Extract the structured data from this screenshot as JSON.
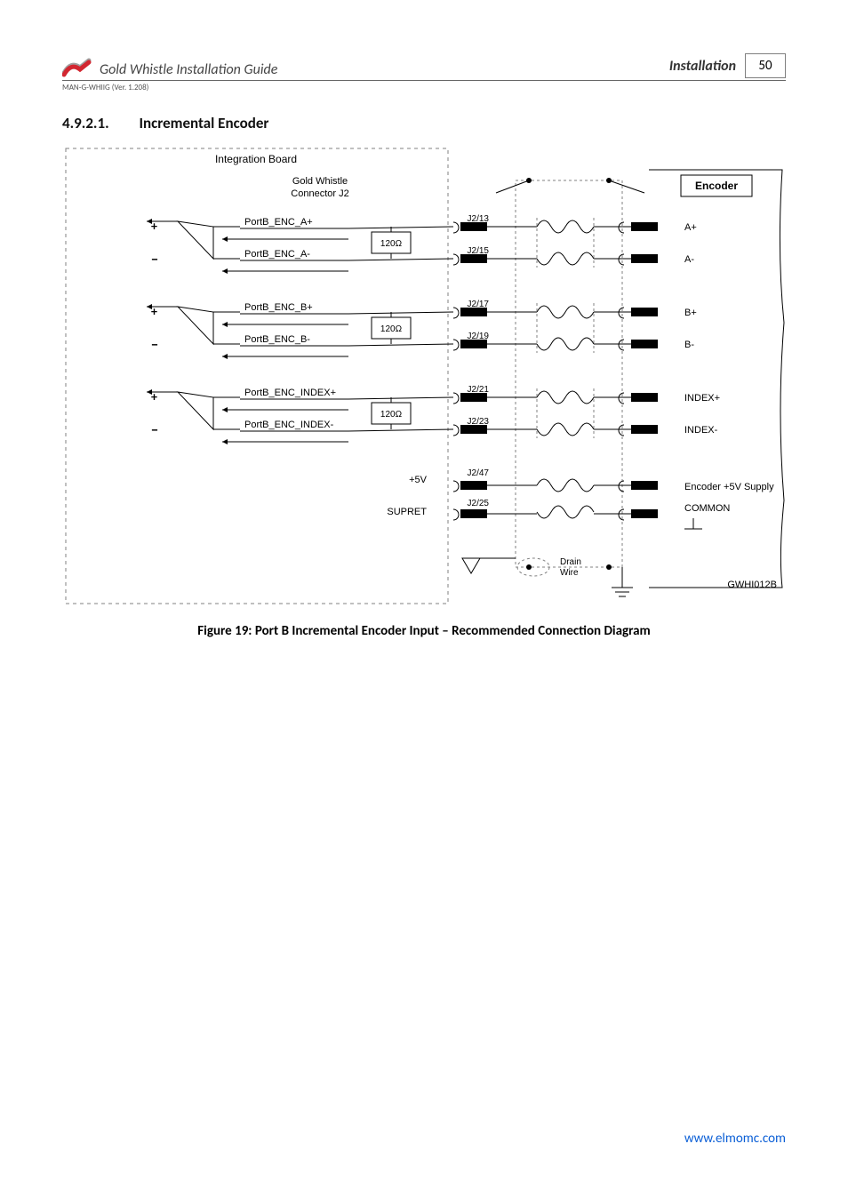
{
  "header": {
    "doc_title": "Gold Whistle Installation Guide",
    "section_label": "Installation",
    "page_number": "50",
    "version_line": "MAN-G-WHIIG (Ver. 1.208)"
  },
  "section": {
    "number": "4.9.2.1.",
    "title": "Incremental Encoder"
  },
  "diagram": {
    "type": "schematic",
    "integration_label": "Integration Board",
    "connector_label_1": "Gold Whistle",
    "connector_label_2": "Connector J2",
    "encoder_label": "Encoder",
    "drain_label_1": "Drain",
    "drain_label_2": "Wire",
    "ref_code": "GWHI012B",
    "resistor_value": "120Ω",
    "power_plus": "+5V",
    "power_ret": "SUPRET",
    "channels": [
      {
        "plus_name": "PortB_ENC_A+",
        "minus_name": "PortB_ENC_A-",
        "pin_plus": "J2/13",
        "pin_minus": "J2/15",
        "enc_plus": "A+",
        "enc_minus": "A-"
      },
      {
        "plus_name": "PortB_ENC_B+",
        "minus_name": "PortB_ENC_B-",
        "pin_plus": "J2/17",
        "pin_minus": "J2/19",
        "enc_plus": "B+",
        "enc_minus": "B-"
      },
      {
        "plus_name": "PortB_ENC_INDEX+",
        "minus_name": "PortB_ENC_INDEX-",
        "pin_plus": "J2/21",
        "pin_minus": "J2/23",
        "enc_plus": "INDEX+",
        "enc_minus": "INDEX-"
      }
    ],
    "power_pins": {
      "v5": "J2/47",
      "common": "J2/25",
      "enc_supply": "Encoder +5V Supply",
      "enc_common": "COMMON"
    },
    "colors": {
      "border": "#000000",
      "dash": "#808080",
      "bg": "#ffffff",
      "text": "#000000",
      "logo_red": "#d22630",
      "logo_gray": "#a0a0a0"
    },
    "fontsizes": {
      "label": 11,
      "pin": 10,
      "title": 12,
      "bold": 12
    }
  },
  "figure_caption": "Figure 19: Port B Incremental Encoder Input – Recommended Connection Diagram",
  "footer": {
    "url": "www.elmomc.com"
  }
}
